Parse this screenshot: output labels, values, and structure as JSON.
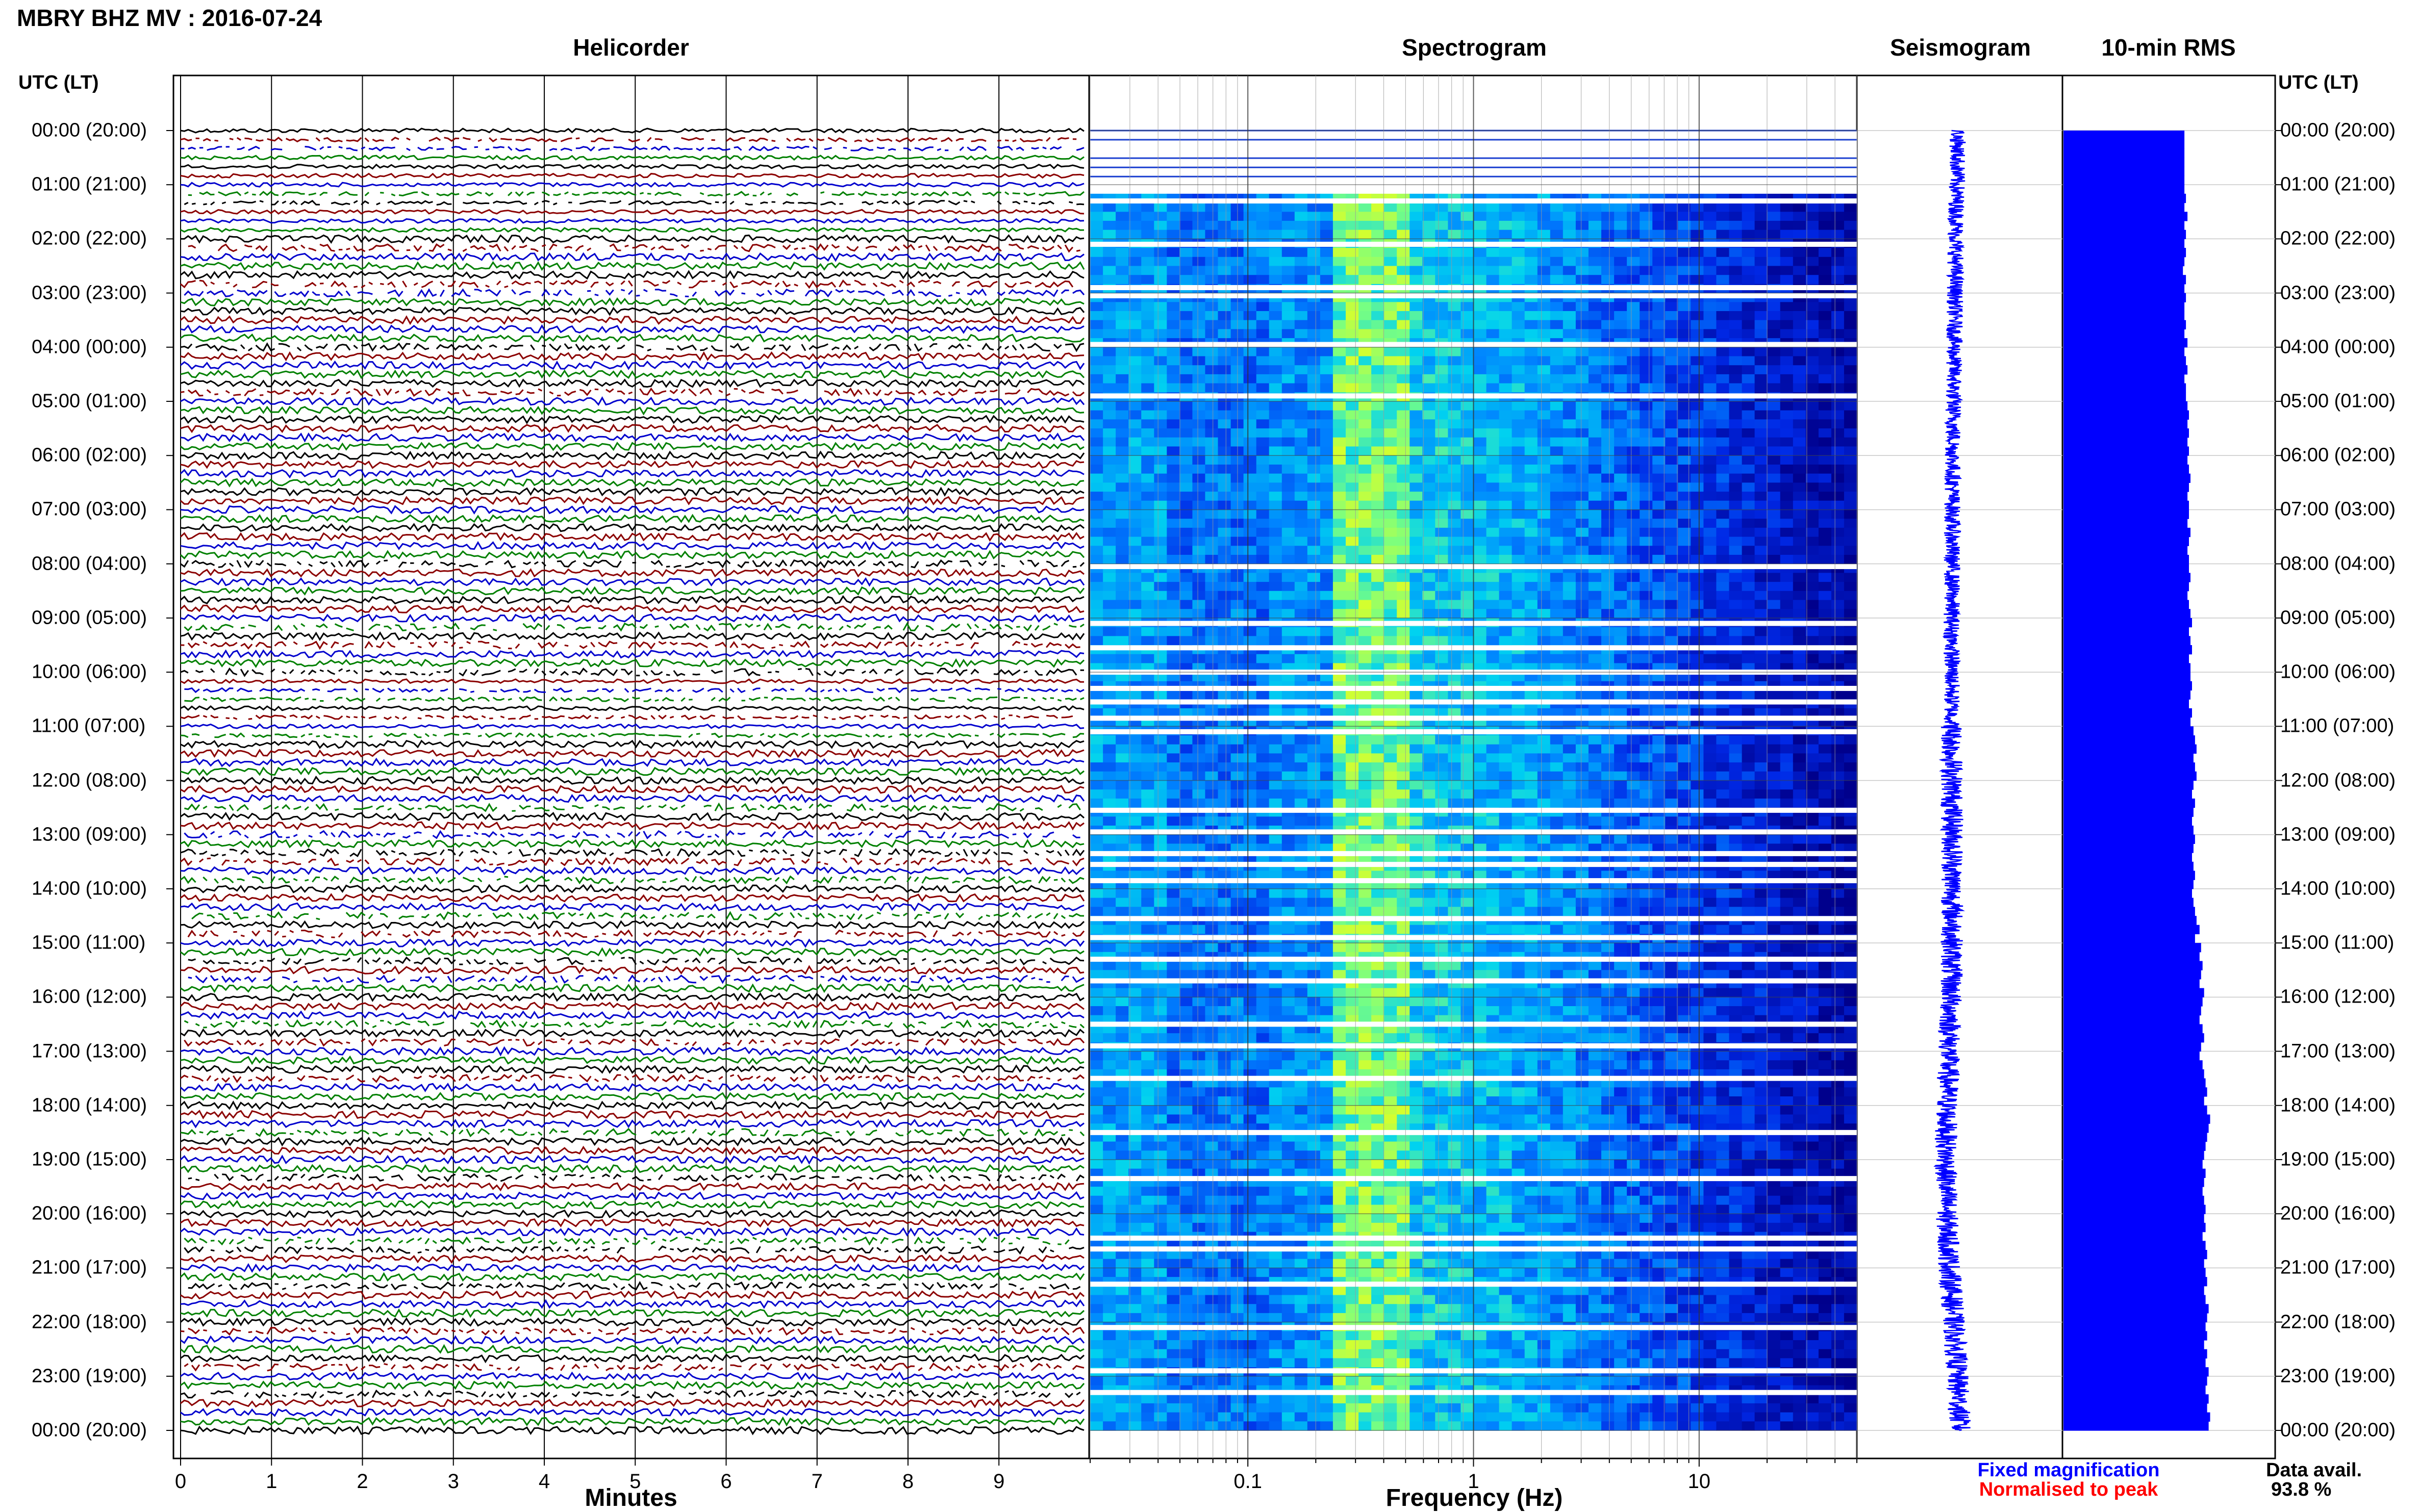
{
  "header": {
    "title": "MBRY BHZ MV : 2016-07-24"
  },
  "panels": {
    "helicorder": "Helicorder",
    "spectrogram": "Spectrogram",
    "seismogram": "Seismogram",
    "rms": "10-min RMS"
  },
  "axis": {
    "time_label": "UTC (LT)",
    "minutes_label": "Minutes",
    "frequency_label": "Frequency (Hz)"
  },
  "legend": {
    "fixed": "Fixed magnification",
    "normalised": "Normalised to peak",
    "data_avail_label": "Data avail.",
    "data_avail_value": "93.8 %"
  },
  "colors": {
    "trace_cycle": [
      "#000000",
      "#8b0000",
      "#0000cd",
      "#008000"
    ],
    "seismogram": "#0000ff",
    "rms": "#0000ff",
    "fixed_text": "#0000ff",
    "normalised_text": "#ff0000"
  },
  "chart_data": [
    {
      "type": "line",
      "name_ref": "helicorder",
      "x_ticks": [
        0,
        1,
        2,
        3,
        4,
        5,
        6,
        7,
        8,
        9
      ],
      "xlim": [
        0,
        10
      ],
      "time_ticks": [
        "00:00 (20:00)",
        "01:00 (21:00)",
        "02:00 (22:00)",
        "03:00 (23:00)",
        "04:00 (00:00)",
        "05:00 (01:00)",
        "06:00 (02:00)",
        "07:00 (03:00)",
        "08:00 (04:00)",
        "09:00 (05:00)",
        "10:00 (06:00)",
        "11:00 (07:00)",
        "12:00 (08:00)",
        "13:00 (09:00)",
        "14:00 (10:00)",
        "15:00 (11:00)",
        "16:00 (12:00)",
        "17:00 (13:00)",
        "18:00 (14:00)",
        "19:00 (15:00)",
        "20:00 (16:00)",
        "21:00 (17:00)",
        "22:00 (18:00)",
        "23:00 (19:00)",
        "00:00 (20:00)"
      ],
      "traces_per_hour": 6,
      "grid": true
    },
    {
      "type": "heatmap",
      "name_ref": "spectrogram",
      "x_scale": "log",
      "xlim": [
        0.02,
        50
      ],
      "x_ticks": [
        0.1,
        1,
        10
      ],
      "x_tick_labels": [
        "0.1",
        "1",
        "10"
      ],
      "data_gap_hours": [
        0.1,
        0.35,
        1.1,
        1.3,
        2.1,
        2.9,
        3.05,
        3.95,
        4.9,
        8.05,
        9.1,
        9.55,
        10.0,
        10.3,
        10.55,
        10.85,
        11.1,
        12.55,
        12.95,
        13.35,
        13.55,
        13.85,
        14.55,
        14.9,
        15.3,
        15.7,
        16.5,
        16.9,
        17.5,
        18.5,
        19.35,
        20.45,
        20.65,
        21.3,
        22.1,
        22.9,
        23.3
      ]
    },
    {
      "type": "line",
      "name_ref": "seismogram",
      "ylim": [
        0,
        24
      ]
    },
    {
      "type": "bar",
      "name_ref": "rms",
      "ylim": [
        0,
        24
      ],
      "values": [
        0.8,
        0.8,
        0.8,
        0.8,
        0.8,
        0.8,
        0.8,
        0.81,
        0.8,
        0.82,
        0.8,
        0.81,
        0.8,
        0.81,
        0.8,
        0.79,
        0.81,
        0.8,
        0.81,
        0.8,
        0.8,
        0.81,
        0.8,
        0.82,
        0.8,
        0.81,
        0.82,
        0.8,
        0.81,
        0.81,
        0.82,
        0.83,
        0.82,
        0.83,
        0.82,
        0.83,
        0.82,
        0.83,
        0.84,
        0.83,
        0.82,
        0.83,
        0.83,
        0.82,
        0.84,
        0.83,
        0.82,
        0.83,
        0.83,
        0.84,
        0.83,
        0.82,
        0.83,
        0.84,
        0.85,
        0.83,
        0.84,
        0.85,
        0.83,
        0.84,
        0.84,
        0.85,
        0.84,
        0.83,
        0.85,
        0.84,
        0.86,
        0.87,
        0.88,
        0.86,
        0.87,
        0.88,
        0.86,
        0.85,
        0.87,
        0.86,
        0.85,
        0.86,
        0.87,
        0.86,
        0.85,
        0.86,
        0.87,
        0.86,
        0.85,
        0.86,
        0.87,
        0.88,
        0.9,
        0.87,
        0.91,
        0.9,
        0.92,
        0.91,
        0.9,
        0.93,
        0.92,
        0.91,
        0.9,
        0.92,
        0.93,
        0.91,
        0.9,
        0.92,
        0.93,
        0.94,
        0.95,
        0.93,
        0.95,
        0.97,
        0.96,
        0.95,
        0.94,
        0.93,
        0.92,
        0.94,
        0.93,
        0.92,
        0.93,
        0.94,
        0.93,
        0.94,
        0.92,
        0.94,
        0.95,
        0.93,
        0.94,
        0.95,
        0.93,
        0.94,
        0.96,
        0.95,
        0.94,
        0.95,
        0.93,
        0.95,
        0.94,
        0.96,
        0.95,
        0.94,
        0.96,
        0.95,
        0.97,
        0.96
      ]
    }
  ]
}
